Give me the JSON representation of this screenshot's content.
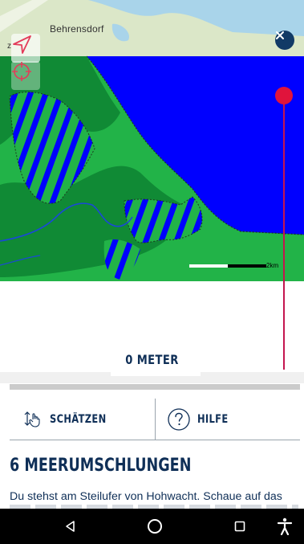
{
  "map": {
    "town_label": "Behrensdorf",
    "edge_letter": "z",
    "scale_label": "2km",
    "icons": {
      "close": "close-icon",
      "navigate": "navigation-arrow-icon",
      "target": "crosshair-icon"
    },
    "colors": {
      "sea": "#0000ff",
      "land": "#22b348",
      "marsh": "#108a35",
      "topo_land": "#dbe7c8",
      "topo_water": "#a9d4ea"
    }
  },
  "depth": {
    "value_label": "0 METER",
    "indicator_color": "#e0143c"
  },
  "actions": {
    "estimate_label": "SCHÄTZEN",
    "estimate_icon": "swipe-vertical-hand-icon",
    "help_label": "HILFE",
    "help_icon": "question-circle-icon"
  },
  "section": {
    "title": "6 MEERUMSCHLUNGEN",
    "text": "Du stehst am Steilufer von Hohwacht. Schaue auf das"
  },
  "system_nav": {
    "icons": [
      "back-icon",
      "home-icon",
      "recents-icon",
      "accessibility-icon"
    ]
  }
}
